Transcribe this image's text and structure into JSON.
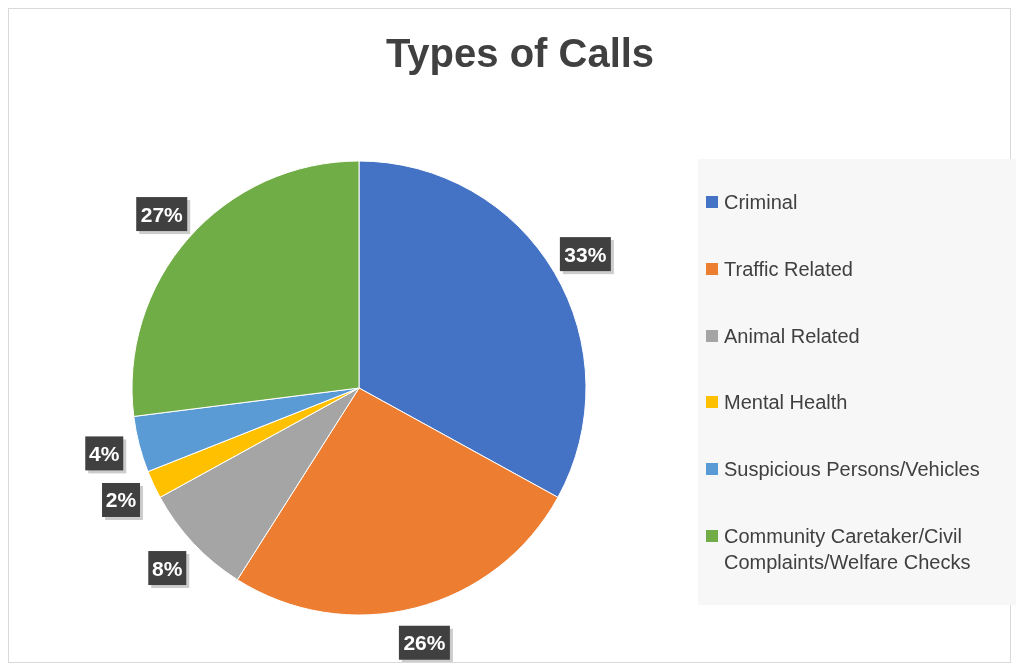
{
  "chart_data": {
    "type": "pie",
    "title": "Types of Calls",
    "categories": [
      "Criminal",
      "Traffic Related",
      "Animal Related",
      "Mental Health",
      "Suspicious Persons/Vehicles",
      "Community Caretaker/Civil Complaints/Welfare Checks"
    ],
    "values": [
      33,
      26,
      8,
      2,
      4,
      27
    ],
    "colors": [
      "#4472c4",
      "#ed7d31",
      "#a5a5a5",
      "#ffc000",
      "#5b9bd5",
      "#70ad47"
    ],
    "value_labels": [
      "33%",
      "26%",
      "8%",
      "2%",
      "4%",
      "27%"
    ],
    "legend": "right"
  }
}
